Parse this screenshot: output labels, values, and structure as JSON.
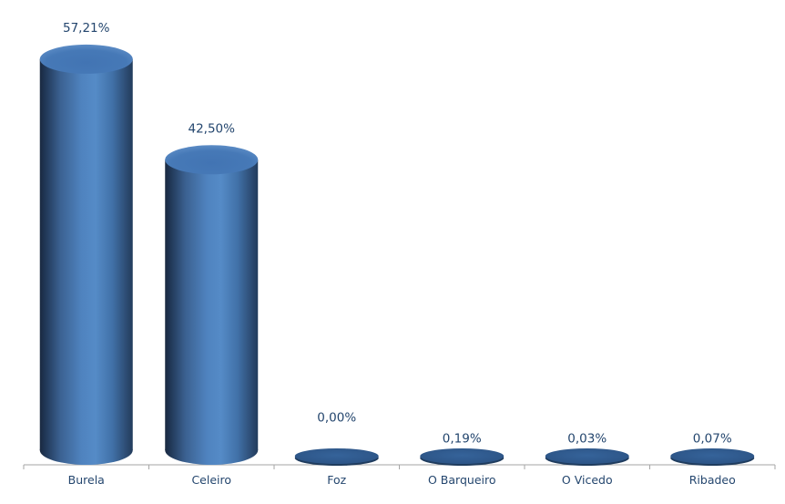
{
  "chart_data": {
    "type": "bar",
    "subtype": "3d-cylinder",
    "title": "",
    "xlabel": "",
    "ylabel": "",
    "categories": [
      "Burela",
      "Celeiro",
      "Foz",
      "O Barqueiro",
      "O Vicedo",
      "Ribadeo"
    ],
    "values": [
      57.21,
      42.5,
      0.0,
      0.19,
      0.03,
      0.07
    ],
    "value_labels": [
      "57,21%",
      "42,50%",
      "0,00%",
      "0,19%",
      "0,03%",
      "0,07%"
    ],
    "ylim": [
      0,
      60
    ],
    "grid": false,
    "legend": false,
    "value_axis_visible": false,
    "decimal_separator": ",",
    "colors": {
      "bar_left_edge": "#1A2940",
      "bar_shadow": "#1F3553",
      "bar_mid": "#4F83BF",
      "bar_highlight": "#558BC7",
      "bar_right_edge": "#223C5C",
      "cap_base": "#4274B3",
      "cap_rim": "#6E9BD1",
      "flat_disk_center": "#35639A",
      "flat_disk_edge": "#2A5080",
      "flat_disk_under": "#1F3C5E",
      "axis_line": "#A6A6A6",
      "label_text": "#24466E",
      "background": "#FFFFFF"
    }
  }
}
